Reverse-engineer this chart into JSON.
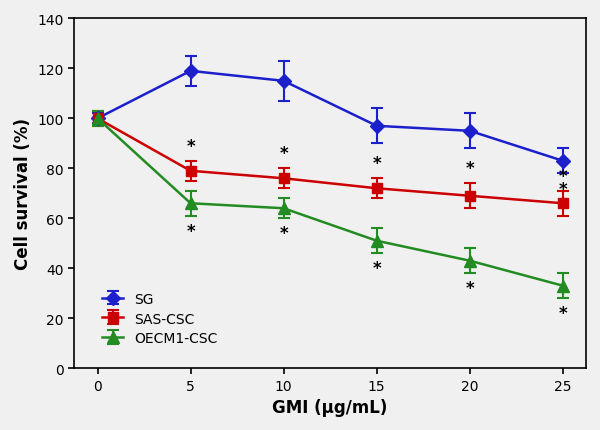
{
  "x": [
    0,
    5,
    10,
    15,
    20,
    25
  ],
  "SG_y": [
    100,
    119,
    115,
    97,
    95,
    83
  ],
  "SG_err": [
    2,
    6,
    8,
    7,
    7,
    5
  ],
  "SAS_y": [
    100,
    79,
    76,
    72,
    69,
    66
  ],
  "SAS_err": [
    3,
    4,
    4,
    4,
    5,
    5
  ],
  "OECM1_y": [
    100,
    66,
    64,
    51,
    43,
    33
  ],
  "OECM1_err": [
    3,
    5,
    4,
    5,
    5,
    5
  ],
  "SG_color": "#1B1FCC",
  "SAS_color": "#CC0000",
  "OECM1_color": "#228B22",
  "xlabel": "GMI (μg/mL)",
  "ylabel": "Cell survival (%)",
  "ylim_min": 0,
  "ylim_max": 140,
  "yticks": [
    0,
    20,
    40,
    60,
    80,
    100,
    120,
    140
  ],
  "xticks": [
    0,
    5,
    10,
    15,
    20,
    25
  ],
  "legend_labels": [
    "SG",
    "SAS-CSC",
    "OECM1-CSC"
  ],
  "fig_bg": "#f0f0f0",
  "axes_bg": "#f0f0f0"
}
